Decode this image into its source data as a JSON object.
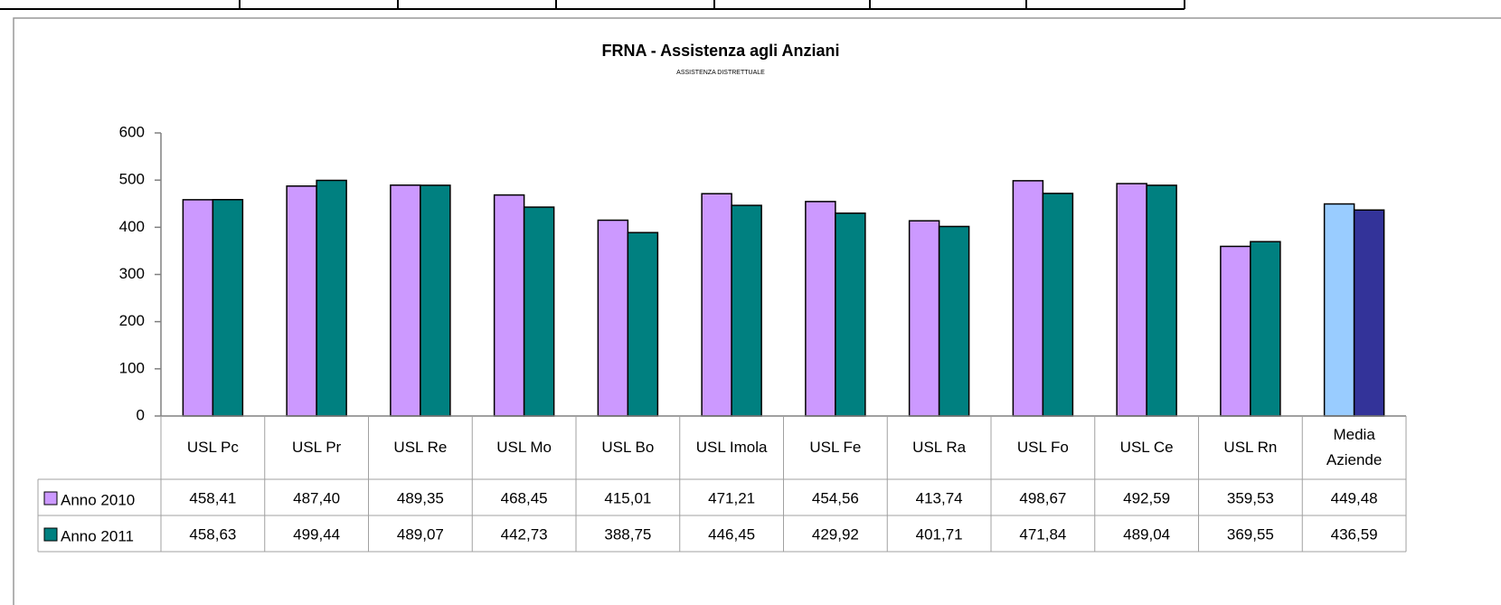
{
  "chart_data": {
    "type": "bar",
    "title": "FRNA - Assistenza agli Anziani",
    "subtitle": "ASSISTENZA DISTRETTUALE",
    "categories": [
      "USL Pc",
      "USL Pr",
      "USL Re",
      "USL Mo",
      "USL Bo",
      "USL Imola",
      "USL Fe",
      "USL Ra",
      "USL Fo",
      "USL Ce",
      "USL Rn",
      "Media Aziende"
    ],
    "series": [
      {
        "name": "Anno 2010",
        "color": "#cc99ff",
        "colors": [
          "#cc99ff",
          "#cc99ff",
          "#cc99ff",
          "#cc99ff",
          "#cc99ff",
          "#cc99ff",
          "#cc99ff",
          "#cc99ff",
          "#cc99ff",
          "#cc99ff",
          "#cc99ff",
          "#99ccff"
        ],
        "values": [
          458.41,
          487.4,
          489.35,
          468.45,
          415.01,
          471.21,
          454.56,
          413.74,
          498.67,
          492.59,
          359.53,
          449.48
        ],
        "value_labels": [
          "458,41",
          "487,40",
          "489,35",
          "468,45",
          "415,01",
          "471,21",
          "454,56",
          "413,74",
          "498,67",
          "492,59",
          "359,53",
          "449,48"
        ]
      },
      {
        "name": "Anno 2011",
        "color": "#008080",
        "colors": [
          "#008080",
          "#008080",
          "#008080",
          "#008080",
          "#008080",
          "#008080",
          "#008080",
          "#008080",
          "#008080",
          "#008080",
          "#008080",
          "#333399"
        ],
        "values": [
          458.63,
          499.44,
          489.07,
          442.73,
          388.75,
          446.45,
          429.92,
          401.71,
          471.84,
          489.04,
          369.55,
          436.59
        ],
        "value_labels": [
          "458,63",
          "499,44",
          "489,07",
          "442,73",
          "388,75",
          "446,45",
          "429,92",
          "401,71",
          "471,84",
          "489,04",
          "369,55",
          "436,59"
        ]
      }
    ],
    "ylim": [
      0,
      600
    ],
    "yticks": [
      0,
      100,
      200,
      300,
      400,
      500,
      600
    ],
    "grid": false
  }
}
